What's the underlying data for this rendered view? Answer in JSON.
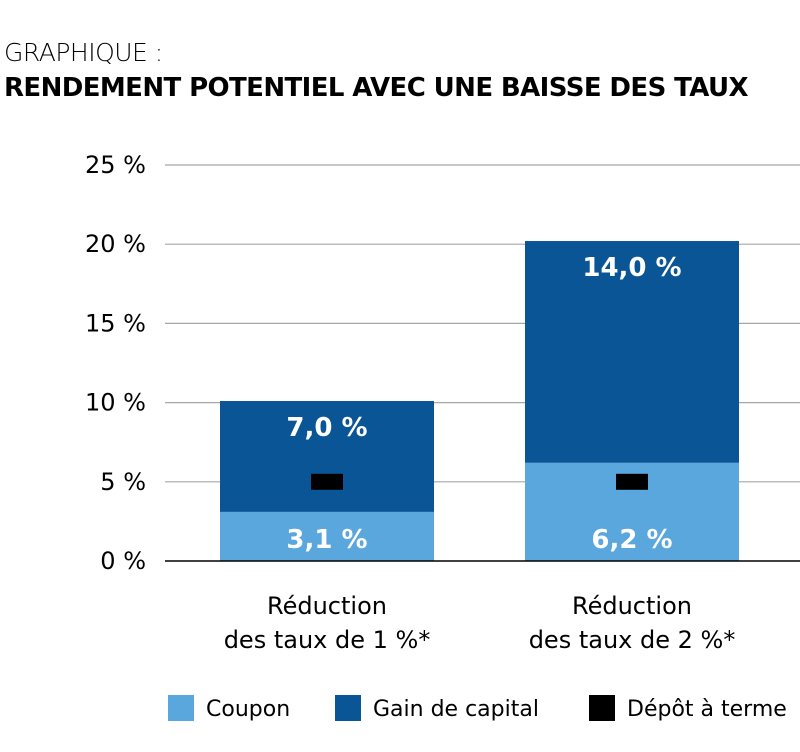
{
  "header": {
    "supertitle": "GRAPHIQUE :",
    "title": "RENDEMENT POTENTIEL AVEC UNE BAISSE DES TAUX"
  },
  "chart_data": {
    "type": "bar",
    "stacked": true,
    "categories": [
      "Réduction des taux de 1 %*",
      "Réduction des taux de 2 %*"
    ],
    "category_lines": [
      [
        "Réduction",
        "des taux de 1 %*"
      ],
      [
        "Réduction",
        "des taux de 2 %*"
      ]
    ],
    "series": [
      {
        "name": "Coupon",
        "values": [
          3.1,
          6.2
        ],
        "labels": [
          "3,1 %",
          "6,2 %"
        ],
        "color": "#5aa7de"
      },
      {
        "name": "Gain de capital",
        "values": [
          7.0,
          14.0
        ],
        "labels": [
          "7,0 %",
          "14,0 %"
        ],
        "color": "#0a5596"
      }
    ],
    "marker_series": {
      "name": "Dépôt à terme",
      "values": [
        5.0,
        5.0
      ],
      "color": "#000000"
    },
    "ylim": [
      0,
      25
    ],
    "yticks": [
      0,
      5,
      10,
      15,
      20,
      25
    ],
    "ytick_labels": [
      "0 %",
      "5 %",
      "10 %",
      "15 %",
      "20 %",
      "25 %"
    ],
    "grid": true,
    "legend_position": "bottom",
    "legend": [
      "Coupon",
      "Gain de capital",
      "Dépôt à terme"
    ],
    "xlabel": "",
    "ylabel": ""
  }
}
